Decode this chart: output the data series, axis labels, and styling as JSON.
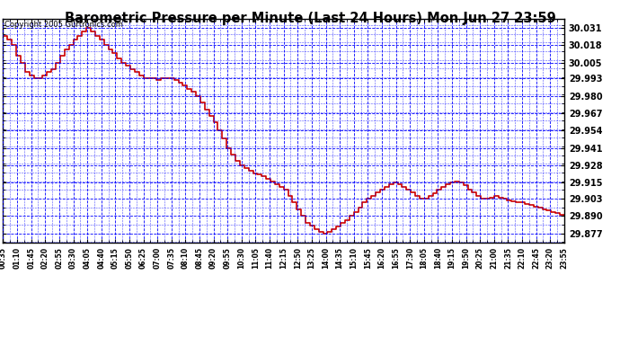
{
  "title": "Barometric Pressure per Minute (Last 24 Hours) Mon Jun 27 23:59",
  "copyright": "Copyright 2005 Gurtronics.com",
  "background_color": "#ffffff",
  "plot_bg_color": "#ffffff",
  "line_color": "#cc0000",
  "grid_color": "#0000ff",
  "line_width": 1.2,
  "yticks": [
    29.877,
    29.89,
    29.903,
    29.915,
    29.928,
    29.941,
    29.954,
    29.967,
    29.98,
    29.993,
    30.005,
    30.018,
    30.031
  ],
  "ylim": [
    29.87,
    30.038
  ],
  "xtick_labels": [
    "00:35",
    "01:10",
    "01:45",
    "02:20",
    "02:55",
    "03:30",
    "04:05",
    "04:40",
    "05:15",
    "05:50",
    "06:25",
    "07:00",
    "07:35",
    "08:10",
    "08:45",
    "09:20",
    "09:55",
    "10:30",
    "11:05",
    "11:40",
    "12:15",
    "12:50",
    "13:25",
    "14:00",
    "14:35",
    "15:10",
    "15:45",
    "16:20",
    "16:55",
    "17:30",
    "18:05",
    "18:40",
    "19:15",
    "19:50",
    "20:25",
    "21:00",
    "21:35",
    "22:10",
    "22:45",
    "23:20",
    "23:55"
  ],
  "pressure_data": [
    30.025,
    30.022,
    30.018,
    30.01,
    30.005,
    29.998,
    29.995,
    29.993,
    29.993,
    29.995,
    29.998,
    30.0,
    30.005,
    30.01,
    30.015,
    30.018,
    30.022,
    30.025,
    30.028,
    30.031,
    30.028,
    30.025,
    30.022,
    30.018,
    30.015,
    30.012,
    30.008,
    30.005,
    30.003,
    30.0,
    29.998,
    29.995,
    29.993,
    29.993,
    29.993,
    29.992,
    29.993,
    29.993,
    29.993,
    29.992,
    29.99,
    29.988,
    29.985,
    29.983,
    29.98,
    29.975,
    29.97,
    29.965,
    29.96,
    29.954,
    29.948,
    29.941,
    29.936,
    29.931,
    29.928,
    29.926,
    29.924,
    29.922,
    29.921,
    29.92,
    29.918,
    29.916,
    29.914,
    29.912,
    29.91,
    29.905,
    29.9,
    29.895,
    29.89,
    29.885,
    29.883,
    29.88,
    29.878,
    29.877,
    29.878,
    29.88,
    29.882,
    29.885,
    29.887,
    29.89,
    29.893,
    29.896,
    29.9,
    29.903,
    29.905,
    29.908,
    29.91,
    29.912,
    29.914,
    29.915,
    29.914,
    29.912,
    29.91,
    29.908,
    29.905,
    29.903,
    29.903,
    29.905,
    29.907,
    29.91,
    29.912,
    29.914,
    29.915,
    29.916,
    29.915,
    29.913,
    29.91,
    29.908,
    29.905,
    29.903,
    29.903,
    29.904,
    29.905,
    29.904,
    29.903,
    29.902,
    29.901,
    29.9,
    29.9,
    29.899,
    29.898,
    29.897,
    29.896,
    29.895,
    29.894,
    29.893,
    29.892,
    29.891,
    29.89
  ]
}
